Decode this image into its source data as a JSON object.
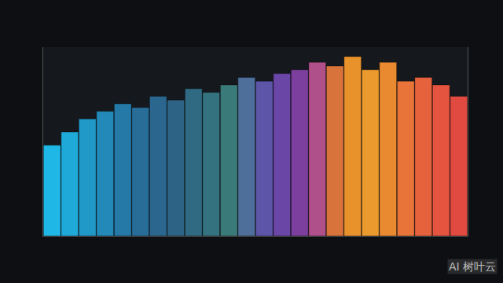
{
  "chart_data": {
    "type": "bar",
    "categories": [
      null,
      null,
      null,
      null,
      null,
      null,
      null,
      null,
      null,
      null,
      null,
      null,
      null,
      null,
      null,
      null,
      null,
      null,
      null,
      null,
      null,
      null,
      null,
      null
    ],
    "values": [
      48,
      55,
      62,
      66,
      70,
      68,
      74,
      72,
      78,
      76,
      80,
      84,
      82,
      86,
      88,
      92,
      90,
      95,
      88,
      92,
      82,
      84,
      80,
      74
    ],
    "colors": [
      "#1fb8e6",
      "#1fa9d8",
      "#2199c8",
      "#2389b8",
      "#2479a6",
      "#276d98",
      "#2a668e",
      "#2d6486",
      "#2f6a82",
      "#33727e",
      "#3a7a78",
      "#4d6f9a",
      "#5c55a8",
      "#6a46a6",
      "#7c3f9e",
      "#b0508a",
      "#d8733c",
      "#e8922c",
      "#eb9a2e",
      "#ea8a30",
      "#e8743a",
      "#e6623c",
      "#e4543e",
      "#e04a40"
    ],
    "ylim": [
      0,
      100
    ],
    "tick_labels": false,
    "grid": false,
    "annotations": [
      "AI 树叶云"
    ]
  }
}
